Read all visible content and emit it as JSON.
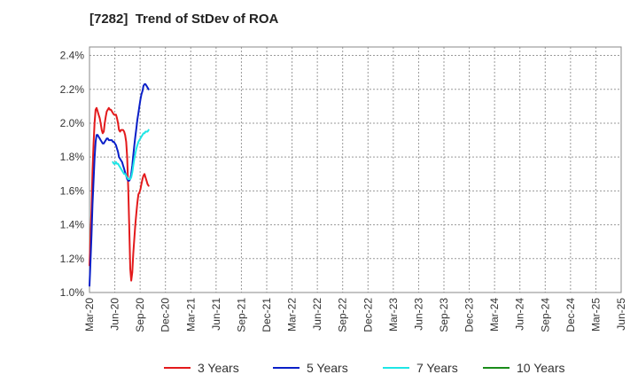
{
  "chart_data": {
    "type": "line",
    "title": "[7282]  Trend of StDev of ROA",
    "xlabel": "",
    "ylabel": "",
    "x_ticks": [
      "Mar-20",
      "Jun-20",
      "Sep-20",
      "Dec-20",
      "Mar-21",
      "Jun-21",
      "Sep-21",
      "Dec-21",
      "Mar-22",
      "Jun-22",
      "Sep-22",
      "Dec-22",
      "Mar-23",
      "Jun-23",
      "Sep-23",
      "Dec-23",
      "Mar-24",
      "Jun-24",
      "Sep-24",
      "Dec-24",
      "Mar-25",
      "Jun-25"
    ],
    "y_ticks": [
      "1.0%",
      "1.2%",
      "1.4%",
      "1.6%",
      "1.8%",
      "2.0%",
      "2.2%",
      "2.4%"
    ],
    "ylim": [
      1.0,
      2.45
    ],
    "grid": true,
    "legend_position": "bottom",
    "series": [
      {
        "name": "3 Years",
        "color": "#e31a1c",
        "values": [
          1.16,
          1.32,
          1.5,
          1.72,
          1.88,
          2.0,
          2.08,
          2.09,
          2.07,
          2.05,
          2.03,
          2.0,
          1.96,
          1.94,
          1.95,
          2.0,
          2.04,
          2.07,
          2.08,
          2.09,
          2.08,
          2.08,
          2.07,
          2.06,
          2.05,
          2.05,
          2.05,
          2.03,
          2.0,
          1.96,
          1.95,
          1.96,
          1.96,
          1.96,
          1.95,
          1.93,
          1.89,
          1.8,
          1.62,
          1.4,
          1.14,
          1.07,
          1.12,
          1.23,
          1.32,
          1.4,
          1.47,
          1.53,
          1.58,
          1.59,
          1.61,
          1.64,
          1.67,
          1.69,
          1.7,
          1.68,
          1.66,
          1.64,
          1.63
        ]
      },
      {
        "name": "5 Years",
        "color": "#0a1fc8",
        "values": [
          1.04,
          1.18,
          1.34,
          1.52,
          1.66,
          1.79,
          1.89,
          1.93,
          1.93,
          1.92,
          1.91,
          1.9,
          1.89,
          1.88,
          1.88,
          1.89,
          1.9,
          1.91,
          1.91,
          1.9,
          1.9,
          1.9,
          1.9,
          1.89,
          1.89,
          1.88,
          1.87,
          1.85,
          1.83,
          1.8,
          1.79,
          1.78,
          1.77,
          1.75,
          1.73,
          1.71,
          1.69,
          1.67,
          1.66,
          1.66,
          1.67,
          1.7,
          1.75,
          1.81,
          1.87,
          1.92,
          1.97,
          2.02,
          2.06,
          2.1,
          2.14,
          2.17,
          2.19,
          2.22,
          2.23,
          2.23,
          2.22,
          2.21,
          2.2
        ]
      },
      {
        "name": "7 Years",
        "color": "#1ee6e6",
        "values": [
          null,
          null,
          null,
          null,
          null,
          null,
          null,
          null,
          null,
          null,
          null,
          null,
          null,
          null,
          null,
          null,
          null,
          null,
          null,
          null,
          null,
          null,
          null,
          1.77,
          1.76,
          1.76,
          1.77,
          1.76,
          1.76,
          1.75,
          1.74,
          1.73,
          1.72,
          1.71,
          1.7,
          1.7,
          1.69,
          1.68,
          1.67,
          1.67,
          1.67,
          1.68,
          1.71,
          1.75,
          1.79,
          1.82,
          1.85,
          1.87,
          1.89,
          1.9,
          1.91,
          1.92,
          1.93,
          1.94,
          1.94,
          1.95,
          1.95,
          1.95,
          1.96
        ]
      },
      {
        "name": "10 Years",
        "color": "#1a8c1a",
        "values": []
      }
    ]
  }
}
